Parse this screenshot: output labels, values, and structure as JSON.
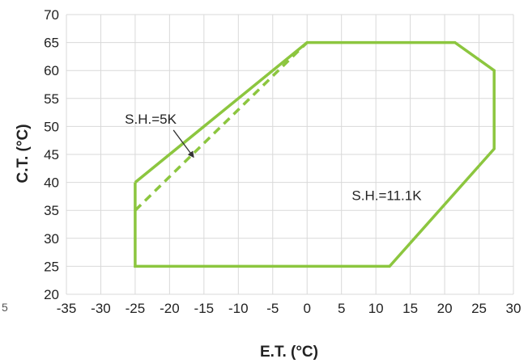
{
  "chart_data": {
    "type": "line",
    "title": "",
    "xlabel": "E.T. (°C)",
    "ylabel": "C.T. (°C)",
    "xlim": [
      -35,
      30
    ],
    "ylim": [
      20,
      70
    ],
    "xticks": [
      -35,
      -30,
      -25,
      -20,
      -15,
      -10,
      -5,
      0,
      5,
      10,
      15,
      20,
      25,
      30
    ],
    "yticks": [
      20,
      25,
      30,
      35,
      40,
      45,
      50,
      55,
      60,
      65,
      70
    ],
    "grid": true,
    "line_color": "#8cc63f",
    "series": [
      {
        "name": "S.H.=11.1K",
        "style": "solid",
        "closed": true,
        "x": [
          -25,
          0,
          21.5,
          27.2,
          27.2,
          12,
          -25,
          -25
        ],
        "y": [
          40,
          65,
          65,
          60,
          46,
          25,
          25,
          40
        ]
      },
      {
        "name": "S.H.=5K",
        "style": "dashed",
        "closed": false,
        "x": [
          -25,
          0
        ],
        "y": [
          35,
          65
        ]
      }
    ],
    "annotations": [
      {
        "text": "S.H.=5K",
        "x": -26.5,
        "y": 50.5,
        "arrow_to": [
          -16.5,
          44.5
        ]
      },
      {
        "text": "S.H.=11.1K",
        "x": 6.5,
        "y": 36.8
      }
    ]
  },
  "stray_label": "5"
}
